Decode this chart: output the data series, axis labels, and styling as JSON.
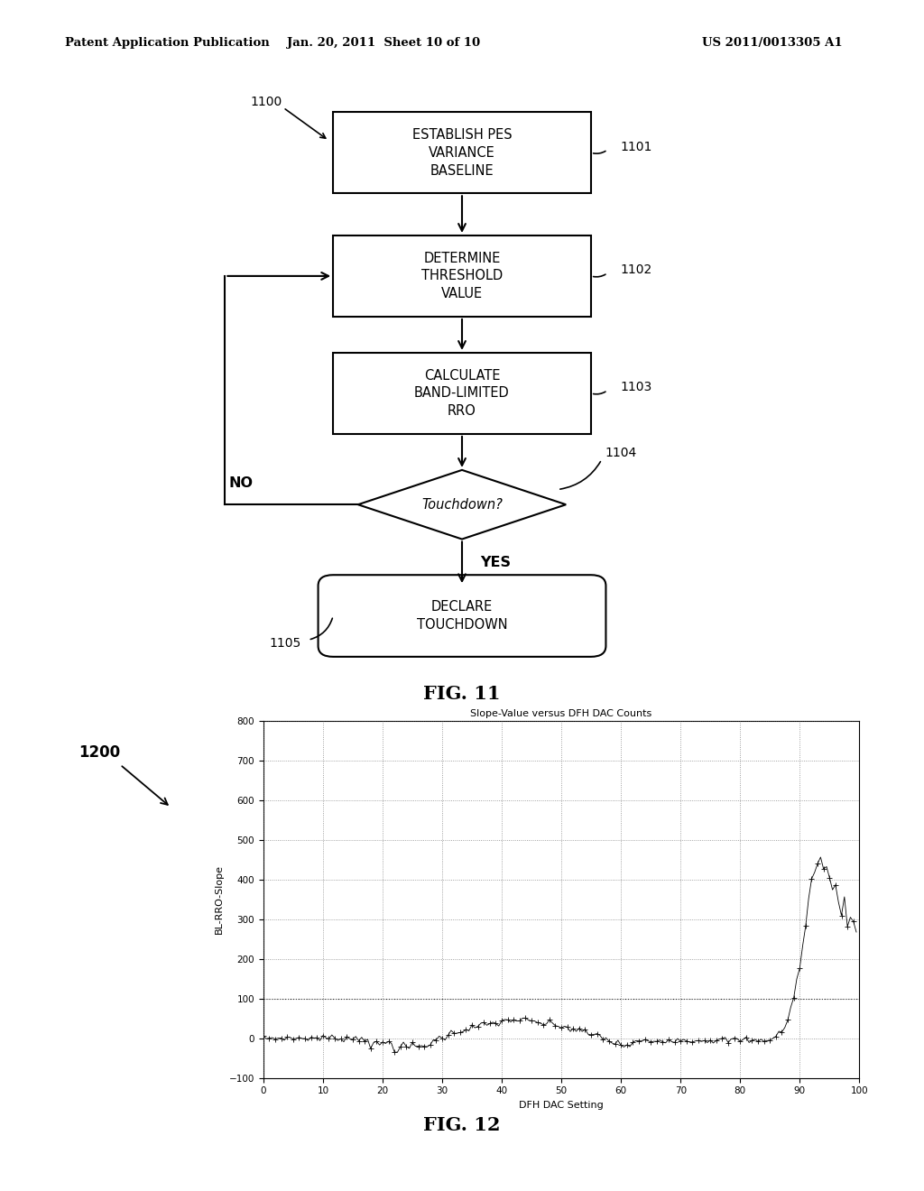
{
  "header_left": "Patent Application Publication",
  "header_mid": "Jan. 20, 2011  Sheet 10 of 10",
  "header_right": "US 2011/0013305 A1",
  "fig11_label": "FIG. 11",
  "fig12_label": "FIG. 12",
  "graph": {
    "title": "Slope-Value versus DFH DAC Counts",
    "xlabel": "DFH DAC Setting",
    "ylabel": "BL-RRO-Slope",
    "xlim": [
      0,
      100
    ],
    "ylim": [
      -100,
      800
    ],
    "yticks": [
      -100,
      0,
      100,
      200,
      300,
      400,
      500,
      600,
      700,
      800
    ],
    "xticks": [
      0,
      10,
      20,
      30,
      40,
      50,
      60,
      70,
      80,
      90,
      100
    ]
  },
  "bg_color": "#ffffff"
}
